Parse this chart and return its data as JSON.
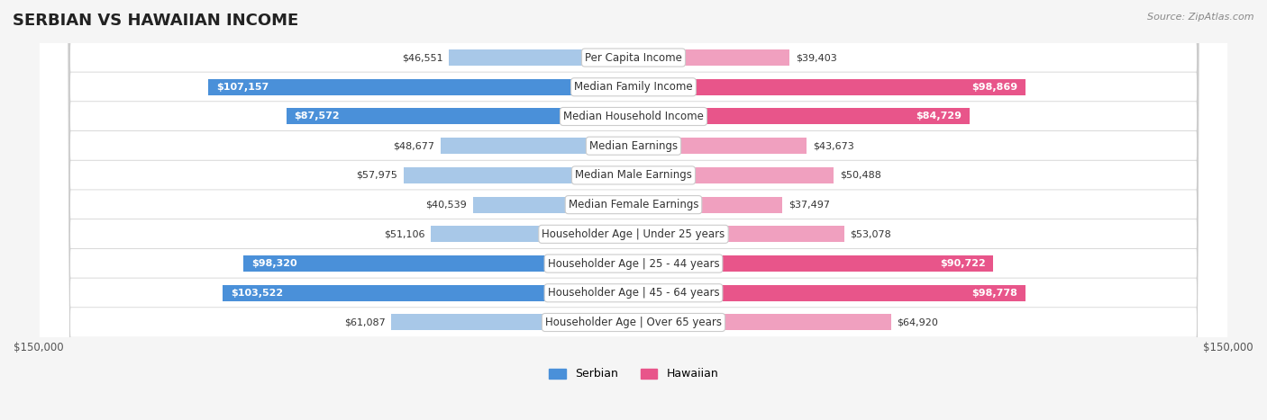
{
  "title": "SERBIAN VS HAWAIIAN INCOME",
  "source": "Source: ZipAtlas.com",
  "categories": [
    "Per Capita Income",
    "Median Family Income",
    "Median Household Income",
    "Median Earnings",
    "Median Male Earnings",
    "Median Female Earnings",
    "Householder Age | Under 25 years",
    "Householder Age | 25 - 44 years",
    "Householder Age | 45 - 64 years",
    "Householder Age | Over 65 years"
  ],
  "serbian_values": [
    46551,
    107157,
    87572,
    48677,
    57975,
    40539,
    51106,
    98320,
    103522,
    61087
  ],
  "hawaiian_values": [
    39403,
    98869,
    84729,
    43673,
    50488,
    37497,
    53078,
    90722,
    98778,
    64920
  ],
  "max_value": 150000,
  "serbian_color_high": "#4a90d9",
  "serbian_color_low": "#a8c8e8",
  "hawaiian_color_high": "#e8558a",
  "hawaiian_color_low": "#f0a0bf",
  "high_threshold": 80000,
  "bg_color": "#f5f5f5",
  "row_bg_color": "#ffffff",
  "row_alt_bg": "#f0f0f0",
  "title_fontsize": 13,
  "label_fontsize": 8.5,
  "value_fontsize": 8,
  "legend_fontsize": 9,
  "source_fontsize": 8
}
